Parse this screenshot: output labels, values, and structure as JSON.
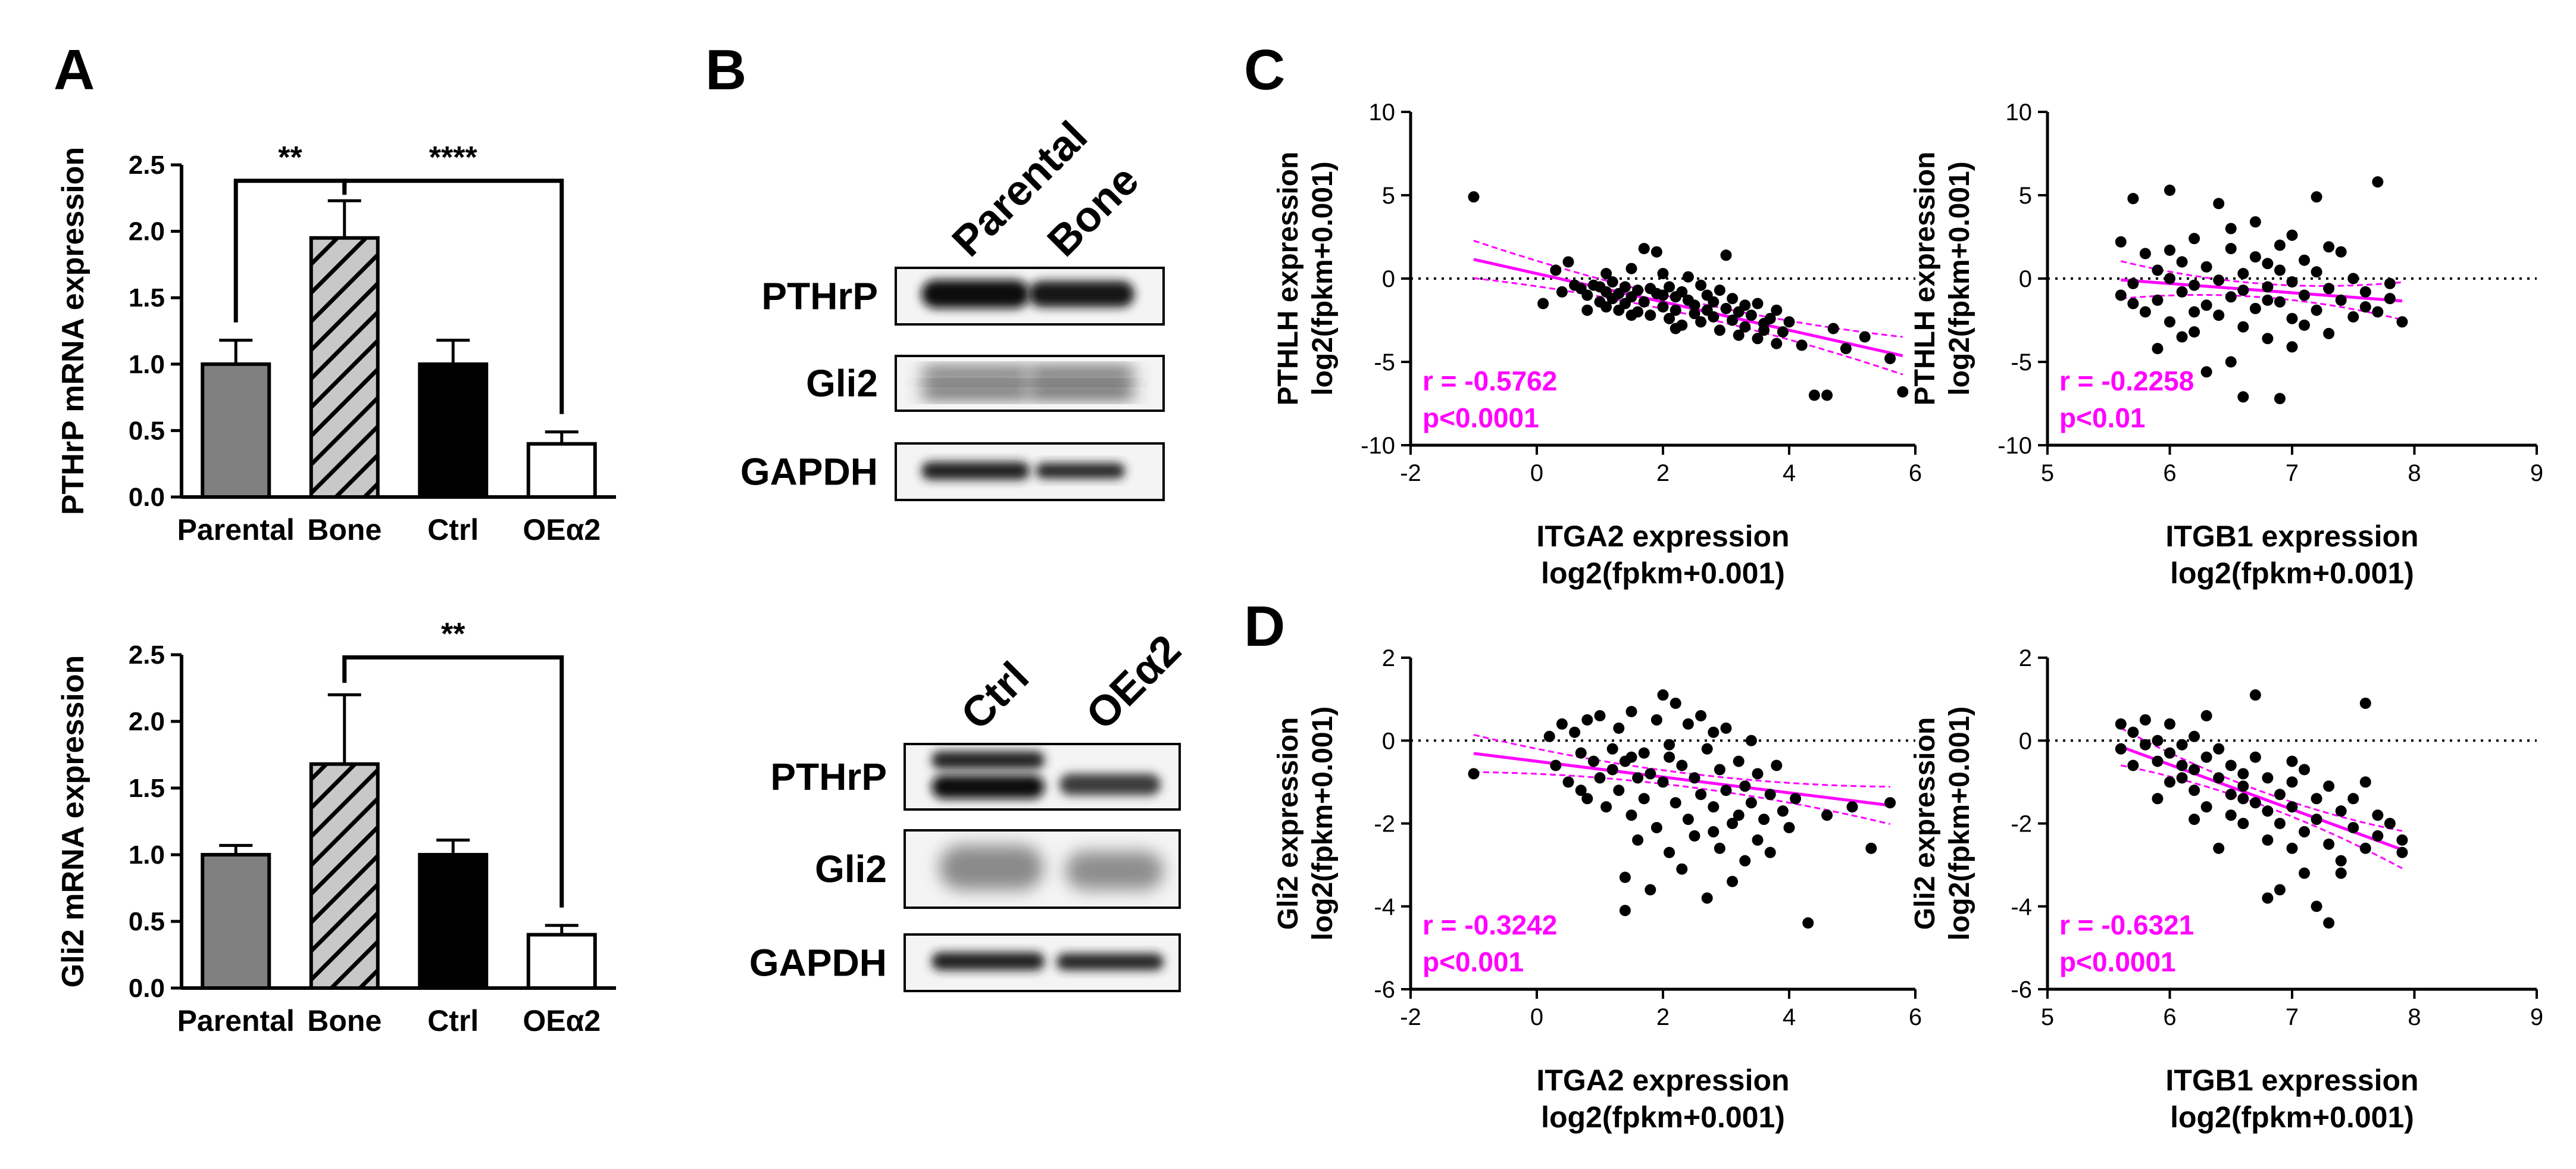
{
  "panel_labels": {
    "A": "A",
    "B": "B",
    "C": "C",
    "D": "D"
  },
  "colors": {
    "accent": "#ff00ff",
    "black": "#000000",
    "grey_bar": "#808080",
    "hatch_bar": "#c8c8c8"
  },
  "chart_data": [
    {
      "id": "A-top",
      "type": "bar",
      "title": "",
      "ylabel": "PTHrP mRNA expression",
      "xlabel": "",
      "categories": [
        "Parental",
        "Bone",
        "Ctrl",
        "OEα2"
      ],
      "values": [
        1.0,
        1.95,
        1.0,
        0.4
      ],
      "errors": [
        0.18,
        0.28,
        0.18,
        0.09
      ],
      "ylim": [
        0,
        2.5
      ],
      "yticks": [
        "0.0",
        "0.5",
        "1.0",
        "1.5",
        "2.0",
        "2.5"
      ],
      "significance": [
        {
          "from": "Parental",
          "to": "Bone",
          "label": "**"
        },
        {
          "from": "Bone",
          "to": "OEα2",
          "label": "****"
        }
      ]
    },
    {
      "id": "A-bottom",
      "type": "bar",
      "title": "",
      "ylabel": "Gli2 mRNA expression",
      "xlabel": "",
      "categories": [
        "Parental",
        "Bone",
        "Ctrl",
        "OEα2"
      ],
      "values": [
        1.0,
        1.68,
        1.0,
        0.4
      ],
      "errors": [
        0.07,
        0.52,
        0.11,
        0.07
      ],
      "ylim": [
        0,
        2.5
      ],
      "yticks": [
        "0.0",
        "0.5",
        "1.0",
        "1.5",
        "2.0",
        "2.5"
      ],
      "significance": [
        {
          "from": "Bone",
          "to": "OEα2",
          "label": "**"
        }
      ]
    },
    {
      "id": "C-left",
      "type": "scatter",
      "ylabel_line1": "PTHLH expression",
      "ylabel_line2": "log2(fpkm+0.001)",
      "xlabel_line1": "ITGA2 expression",
      "xlabel_line2": "log2(fpkm+0.001)",
      "xlim": [
        -2,
        6
      ],
      "ylim": [
        -10,
        10
      ],
      "xticks": [
        "-2",
        "0",
        "2",
        "4",
        "6"
      ],
      "yticks": [
        "-10",
        "-5",
        "0",
        "5",
        "10"
      ],
      "r_label": "r = -0.5762",
      "p_label": "p<0.0001",
      "fit": {
        "slope": -0.85,
        "intercept": 0.3
      },
      "points": [
        [
          -1.0,
          4.9
        ],
        [
          0.1,
          -1.5
        ],
        [
          0.3,
          0.5
        ],
        [
          0.4,
          -0.8
        ],
        [
          0.5,
          1.0
        ],
        [
          0.6,
          -0.4
        ],
        [
          0.7,
          -0.6
        ],
        [
          0.8,
          -1.0
        ],
        [
          0.9,
          -0.4
        ],
        [
          1.0,
          -0.5
        ],
        [
          1.0,
          -1.4
        ],
        [
          1.1,
          -0.8
        ],
        [
          1.1,
          -1.7
        ],
        [
          1.2,
          -0.2
        ],
        [
          1.2,
          -1.2
        ],
        [
          1.3,
          -0.9
        ],
        [
          1.3,
          -1.9
        ],
        [
          1.4,
          -0.5
        ],
        [
          1.4,
          -1.5
        ],
        [
          1.5,
          0.6
        ],
        [
          1.5,
          -1.1
        ],
        [
          1.6,
          -2.0
        ],
        [
          1.6,
          -0.7
        ],
        [
          1.7,
          1.8
        ],
        [
          1.7,
          -1.4
        ],
        [
          1.8,
          -0.6
        ],
        [
          1.8,
          -2.2
        ],
        [
          1.9,
          1.6
        ],
        [
          1.9,
          -0.9
        ],
        [
          2.0,
          -1.7
        ],
        [
          2.0,
          0.3
        ],
        [
          2.1,
          -2.4
        ],
        [
          2.1,
          -0.5
        ],
        [
          2.2,
          -1.1
        ],
        [
          2.2,
          -1.9
        ],
        [
          2.3,
          -0.8
        ],
        [
          2.3,
          -2.8
        ],
        [
          2.4,
          -1.3
        ],
        [
          2.4,
          0.1
        ],
        [
          2.5,
          -1.6
        ],
        [
          2.5,
          -2.1
        ],
        [
          2.6,
          -0.4
        ],
        [
          2.6,
          -2.6
        ],
        [
          2.7,
          -1.0
        ],
        [
          2.7,
          -1.9
        ],
        [
          2.8,
          -2.3
        ],
        [
          2.8,
          -1.4
        ],
        [
          2.9,
          -3.1
        ],
        [
          2.9,
          -0.7
        ],
        [
          3.0,
          -1.8
        ],
        [
          3.0,
          1.4
        ],
        [
          3.1,
          -2.5
        ],
        [
          3.1,
          -1.2
        ],
        [
          3.2,
          -3.4
        ],
        [
          3.2,
          -2.0
        ],
        [
          3.3,
          -1.6
        ],
        [
          3.3,
          -2.9
        ],
        [
          3.4,
          -2.2
        ],
        [
          3.5,
          -3.6
        ],
        [
          3.5,
          -1.5
        ],
        [
          3.6,
          -2.7
        ],
        [
          3.6,
          -3.1
        ],
        [
          3.7,
          -2.4
        ],
        [
          3.8,
          -3.9
        ],
        [
          3.8,
          -1.9
        ],
        [
          3.9,
          -3.2
        ],
        [
          4.0,
          -2.6
        ],
        [
          4.2,
          -4.0
        ],
        [
          4.4,
          -7.0
        ],
        [
          4.6,
          -7.0
        ],
        [
          4.7,
          -3.0
        ],
        [
          4.9,
          -4.2
        ],
        [
          5.2,
          -3.5
        ],
        [
          5.6,
          -4.8
        ],
        [
          5.8,
          -6.8
        ],
        [
          0.8,
          -1.9
        ],
        [
          1.5,
          -2.2
        ],
        [
          2.2,
          -3.0
        ],
        [
          1.1,
          0.3
        ],
        [
          2.0,
          -1.0
        ]
      ]
    },
    {
      "id": "C-right",
      "type": "scatter",
      "ylabel_line1": "PTHLH expression",
      "ylabel_line2": "log2(fpkm+0.001)",
      "xlabel_line1": "ITGB1 expression",
      "xlabel_line2": "log2(fpkm+0.001)",
      "xlim": [
        5,
        9
      ],
      "ylim": [
        -10,
        10
      ],
      "xticks": [
        "5",
        "6",
        "7",
        "8",
        "9"
      ],
      "yticks": [
        "-10",
        "-5",
        "0",
        "5",
        "10"
      ],
      "r_label": "r = -0.2258",
      "p_label": "p<0.01",
      "fit": {
        "slope": -0.55,
        "intercept": 3.0
      },
      "points": [
        [
          5.6,
          2.2
        ],
        [
          5.6,
          -1.0
        ],
        [
          5.7,
          4.8
        ],
        [
          5.7,
          -0.3
        ],
        [
          5.8,
          1.5
        ],
        [
          5.8,
          -2.0
        ],
        [
          5.9,
          0.5
        ],
        [
          5.9,
          -1.3
        ],
        [
          6.0,
          5.3
        ],
        [
          6.0,
          -2.6
        ],
        [
          6.0,
          0.0
        ],
        [
          6.1,
          -0.8
        ],
        [
          6.1,
          1.0
        ],
        [
          6.2,
          -3.2
        ],
        [
          6.2,
          -0.4
        ],
        [
          6.2,
          2.4
        ],
        [
          6.3,
          -1.6
        ],
        [
          6.3,
          0.7
        ],
        [
          6.4,
          4.5
        ],
        [
          6.4,
          -2.2
        ],
        [
          6.4,
          -0.1
        ],
        [
          6.5,
          -1.1
        ],
        [
          6.5,
          1.8
        ],
        [
          6.5,
          -5.0
        ],
        [
          6.6,
          0.3
        ],
        [
          6.6,
          -2.9
        ],
        [
          6.6,
          -0.7
        ],
        [
          6.7,
          1.3
        ],
        [
          6.7,
          -1.8
        ],
        [
          6.7,
          3.4
        ],
        [
          6.8,
          -0.5
        ],
        [
          6.8,
          -3.6
        ],
        [
          6.8,
          0.9
        ],
        [
          6.9,
          -1.4
        ],
        [
          6.9,
          -7.2
        ],
        [
          6.9,
          2.0
        ],
        [
          7.0,
          -2.4
        ],
        [
          7.0,
          -0.2
        ],
        [
          7.0,
          -4.1
        ],
        [
          7.1,
          1.1
        ],
        [
          7.1,
          -1.0
        ],
        [
          7.1,
          -2.8
        ],
        [
          7.2,
          0.4
        ],
        [
          7.2,
          4.9
        ],
        [
          7.2,
          -1.9
        ],
        [
          7.3,
          -0.6
        ],
        [
          7.3,
          -3.3
        ],
        [
          7.4,
          1.6
        ],
        [
          7.4,
          -1.3
        ],
        [
          7.5,
          -2.3
        ],
        [
          7.5,
          0.0
        ],
        [
          7.6,
          -1.7
        ],
        [
          7.6,
          -0.8
        ],
        [
          7.7,
          -2.0
        ],
        [
          7.7,
          5.8
        ],
        [
          7.8,
          -1.2
        ],
        [
          7.9,
          -2.6
        ],
        [
          7.8,
          -0.3
        ],
        [
          5.9,
          -4.2
        ],
        [
          6.3,
          -5.6
        ],
        [
          6.5,
          3.0
        ],
        [
          6.6,
          -7.1
        ],
        [
          6.0,
          1.7
        ],
        [
          7.0,
          2.6
        ],
        [
          6.2,
          -2.0
        ],
        [
          6.8,
          -1.3
        ],
        [
          7.3,
          1.9
        ],
        [
          5.7,
          -1.5
        ],
        [
          6.1,
          -3.5
        ],
        [
          6.9,
          0.5
        ]
      ]
    },
    {
      "id": "D-left",
      "type": "scatter",
      "ylabel_line1": "Gli2 expression",
      "ylabel_line2": "log2(fpkm+0.001)",
      "xlabel_line1": "ITGA2 expression",
      "xlabel_line2": "log2(fpkm+0.001)",
      "xlim": [
        -2,
        6
      ],
      "ylim": [
        -6,
        2
      ],
      "xticks": [
        "-2",
        "0",
        "2",
        "4",
        "6"
      ],
      "yticks": [
        "-6",
        "-4",
        "-2",
        "0",
        "2"
      ],
      "r_label": "r = -0.3242",
      "p_label": "p<0.001",
      "fit": {
        "slope": -0.19,
        "intercept": -0.5
      },
      "points": [
        [
          -1.0,
          -0.8
        ],
        [
          0.2,
          0.1
        ],
        [
          0.3,
          -0.6
        ],
        [
          0.4,
          0.4
        ],
        [
          0.5,
          -1.0
        ],
        [
          0.6,
          0.2
        ],
        [
          0.7,
          -0.3
        ],
        [
          0.8,
          0.5
        ],
        [
          0.8,
          -1.4
        ],
        [
          0.9,
          -0.5
        ],
        [
          1.0,
          0.6
        ],
        [
          1.0,
          -0.9
        ],
        [
          1.1,
          -1.6
        ],
        [
          1.2,
          -0.2
        ],
        [
          1.2,
          -0.7
        ],
        [
          1.3,
          0.3
        ],
        [
          1.3,
          -1.2
        ],
        [
          1.4,
          -3.3
        ],
        [
          1.4,
          -0.5
        ],
        [
          1.5,
          0.7
        ],
        [
          1.5,
          -1.8
        ],
        [
          1.6,
          -0.9
        ],
        [
          1.6,
          -2.4
        ],
        [
          1.7,
          -0.3
        ],
        [
          1.7,
          -1.4
        ],
        [
          1.8,
          -3.6
        ],
        [
          1.8,
          -0.8
        ],
        [
          1.9,
          0.5
        ],
        [
          1.9,
          -2.1
        ],
        [
          2.0,
          1.1
        ],
        [
          2.0,
          -1.0
        ],
        [
          2.1,
          -0.4
        ],
        [
          2.1,
          -2.7
        ],
        [
          2.2,
          0.9
        ],
        [
          2.2,
          -1.5
        ],
        [
          2.3,
          -0.6
        ],
        [
          2.3,
          -3.1
        ],
        [
          2.4,
          0.4
        ],
        [
          2.4,
          -1.9
        ],
        [
          2.5,
          -0.9
        ],
        [
          2.5,
          -2.3
        ],
        [
          2.6,
          0.6
        ],
        [
          2.6,
          -1.3
        ],
        [
          2.7,
          -0.2
        ],
        [
          2.7,
          -3.8
        ],
        [
          2.8,
          -1.6
        ],
        [
          2.8,
          0.2
        ],
        [
          2.9,
          -2.6
        ],
        [
          2.9,
          -0.7
        ],
        [
          3.0,
          -1.2
        ],
        [
          3.0,
          0.3
        ],
        [
          3.1,
          -2.0
        ],
        [
          3.1,
          -3.4
        ],
        [
          3.2,
          -0.5
        ],
        [
          3.2,
          -1.8
        ],
        [
          3.3,
          -1.1
        ],
        [
          3.3,
          -2.9
        ],
        [
          3.4,
          0.0
        ],
        [
          3.4,
          -1.5
        ],
        [
          3.5,
          -2.4
        ],
        [
          3.5,
          -0.8
        ],
        [
          3.6,
          -1.9
        ],
        [
          3.7,
          -1.3
        ],
        [
          3.7,
          -2.7
        ],
        [
          3.8,
          -0.6
        ],
        [
          3.9,
          -1.7
        ],
        [
          4.0,
          -2.1
        ],
        [
          4.1,
          -1.4
        ],
        [
          4.3,
          -4.4
        ],
        [
          4.6,
          -1.8
        ],
        [
          5.0,
          -1.6
        ],
        [
          5.3,
          -2.6
        ],
        [
          5.6,
          -1.5
        ],
        [
          1.4,
          -4.1
        ],
        [
          0.7,
          -1.2
        ],
        [
          2.1,
          -0.1
        ],
        [
          1.5,
          -0.4
        ],
        [
          2.8,
          -2.2
        ]
      ]
    },
    {
      "id": "D-right",
      "type": "scatter",
      "ylabel_line1": "Gli2 expression",
      "ylabel_line2": "log2(fpkm+0.001)",
      "xlabel_line1": "ITGB1 expression",
      "xlabel_line2": "log2(fpkm+0.001)",
      "xlim": [
        5,
        9
      ],
      "ylim": [
        -6,
        2
      ],
      "xticks": [
        "5",
        "6",
        "7",
        "8",
        "9"
      ],
      "yticks": [
        "-6",
        "-4",
        "-2",
        "0",
        "2"
      ],
      "r_label": "r = -0.6321",
      "p_label": "p<0.0001",
      "fit": {
        "slope": -1.08,
        "intercept": 5.9
      },
      "points": [
        [
          5.6,
          0.4
        ],
        [
          5.6,
          -0.2
        ],
        [
          5.7,
          0.2
        ],
        [
          5.7,
          -0.6
        ],
        [
          5.8,
          0.5
        ],
        [
          5.8,
          -0.1
        ],
        [
          5.9,
          -0.5
        ],
        [
          5.9,
          0.0
        ],
        [
          6.0,
          -0.3
        ],
        [
          6.0,
          -1.0
        ],
        [
          6.0,
          0.4
        ],
        [
          6.1,
          -0.6
        ],
        [
          6.1,
          -0.1
        ],
        [
          6.2,
          -1.2
        ],
        [
          6.2,
          0.1
        ],
        [
          6.2,
          -0.7
        ],
        [
          6.3,
          -0.4
        ],
        [
          6.3,
          -1.6
        ],
        [
          6.4,
          -0.9
        ],
        [
          6.4,
          -2.6
        ],
        [
          6.4,
          -0.2
        ],
        [
          6.5,
          -1.3
        ],
        [
          6.5,
          -0.6
        ],
        [
          6.5,
          -1.8
        ],
        [
          6.6,
          -0.8
        ],
        [
          6.6,
          -2.0
        ],
        [
          6.6,
          -1.1
        ],
        [
          6.7,
          1.1
        ],
        [
          6.7,
          -1.5
        ],
        [
          6.7,
          -0.4
        ],
        [
          6.8,
          -2.4
        ],
        [
          6.8,
          -0.9
        ],
        [
          6.8,
          -3.8
        ],
        [
          6.9,
          -1.3
        ],
        [
          6.9,
          -2.0
        ],
        [
          6.9,
          -3.6
        ],
        [
          7.0,
          -1.0
        ],
        [
          7.0,
          -2.6
        ],
        [
          7.0,
          -1.6
        ],
        [
          7.1,
          -3.2
        ],
        [
          7.1,
          -0.7
        ],
        [
          7.1,
          -2.2
        ],
        [
          7.2,
          -1.4
        ],
        [
          7.2,
          -1.9
        ],
        [
          7.2,
          -4.0
        ],
        [
          7.3,
          -2.5
        ],
        [
          7.3,
          -1.1
        ],
        [
          7.3,
          -4.4
        ],
        [
          7.4,
          -1.7
        ],
        [
          7.4,
          -2.9
        ],
        [
          7.5,
          -2.1
        ],
        [
          7.5,
          -1.4
        ],
        [
          7.6,
          0.9
        ],
        [
          7.6,
          -2.6
        ],
        [
          7.7,
          -1.8
        ],
        [
          7.7,
          -2.3
        ],
        [
          7.8,
          -2.0
        ],
        [
          7.9,
          -2.4
        ],
        [
          7.9,
          -2.7
        ],
        [
          6.1,
          -0.9
        ],
        [
          6.6,
          -1.4
        ],
        [
          7.0,
          -0.5
        ],
        [
          6.3,
          0.6
        ],
        [
          5.9,
          -1.4
        ],
        [
          7.6,
          -1.0
        ],
        [
          6.8,
          -1.7
        ],
        [
          7.4,
          -3.2
        ],
        [
          6.2,
          -1.9
        ]
      ]
    }
  ],
  "blots": {
    "top": {
      "lanes": [
        "Parental",
        "Bone"
      ],
      "rows": [
        "PTHrP",
        "Gli2",
        "GAPDH"
      ]
    },
    "bottom": {
      "lanes": [
        "Ctrl",
        "OEα2"
      ],
      "rows": [
        "PTHrP",
        "Gli2",
        "GAPDH"
      ]
    }
  }
}
